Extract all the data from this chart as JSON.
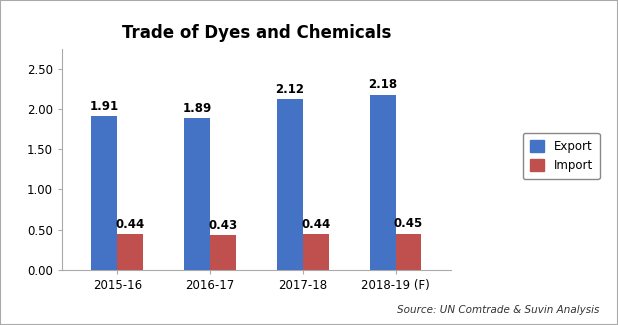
{
  "title": "Trade of Dyes and Chemicals",
  "categories": [
    "2015-16",
    "2016-17",
    "2017-18",
    "2018-19 (F)"
  ],
  "export_values": [
    1.91,
    1.89,
    2.12,
    2.18
  ],
  "import_values": [
    0.44,
    0.43,
    0.44,
    0.45
  ],
  "export_color": "#4472C4",
  "import_color": "#C0504D",
  "ylim": [
    0,
    2.75
  ],
  "yticks": [
    0.0,
    0.5,
    1.0,
    1.5,
    2.0,
    2.5
  ],
  "bar_width": 0.28,
  "source_text": "Source: UN Comtrade & Suvin Analysis",
  "legend_labels": [
    "Export",
    "Import"
  ],
  "background_color": "#ffffff",
  "border_color": "#aaaaaa",
  "title_fontsize": 12,
  "tick_fontsize": 8.5,
  "label_fontsize": 8.5,
  "source_fontsize": 7.5
}
